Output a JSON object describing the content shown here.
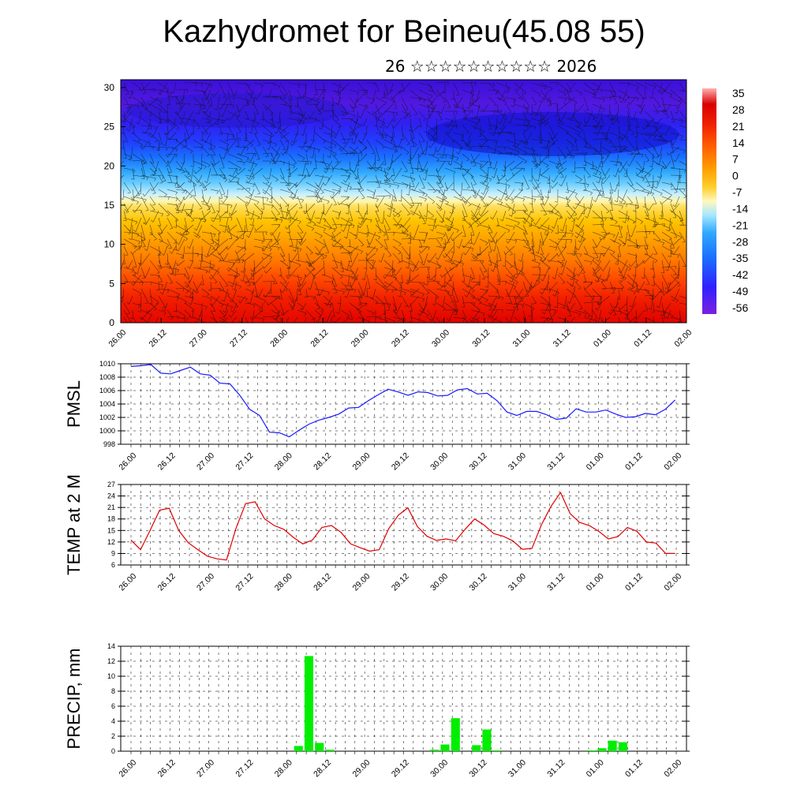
{
  "header": {
    "title": "Kazhydromet for Beineu(45.08 55)",
    "subtitle": "26 ☆☆☆☆☆☆☆☆☆☆ 2026"
  },
  "colors": {
    "pmsl_line": "#1a1aff",
    "temp_line": "#e00000",
    "precip_bar": "#00ee00",
    "frame": "#000000"
  },
  "chart_data": [
    {
      "type": "heatmap",
      "name": "cross-section",
      "y_ticks": [
        "0",
        "5",
        "10",
        "15",
        "20",
        "25",
        "30"
      ],
      "ylim": [
        0,
        31
      ],
      "x_ticks": [
        "26.00",
        "26.12",
        "27.00",
        "27.12",
        "28.00",
        "28.12",
        "29.00",
        "29.12",
        "30.00",
        "30.12",
        "31.00",
        "31.12",
        "01.00",
        "01.12",
        "02.00"
      ],
      "colorbar_labels": [
        "35",
        "28",
        "21",
        "14",
        "7",
        "0",
        "-7",
        "-14",
        "-21",
        "-28",
        "-35",
        "-42",
        "-49",
        "-56"
      ],
      "overlay": "wind barbs"
    },
    {
      "type": "line",
      "ylabel": "PMSL",
      "ylim": [
        998,
        1010
      ],
      "y_ticks": [
        "998",
        "1000",
        "1002",
        "1004",
        "1006",
        "1008",
        "1010"
      ],
      "x_ticks": [
        "26.00",
        "26.12",
        "27.00",
        "27.12",
        "28.00",
        "28.12",
        "29.00",
        "29.12",
        "30.00",
        "30.12",
        "31.00",
        "31.12",
        "01.00",
        "01.12",
        "02.00"
      ],
      "values": [
        1009.6,
        1009.7,
        1009.9,
        1008.6,
        1008.5,
        1009.0,
        1009.5,
        1008.5,
        1008.3,
        1007.1,
        1007.0,
        1005.3,
        1003.2,
        1002.3,
        999.8,
        999.7,
        999.1,
        1000.1,
        1001.0,
        1001.6,
        1002.0,
        1002.5,
        1003.4,
        1003.5,
        1004.5,
        1005.4,
        1006.2,
        1005.8,
        1005.3,
        1005.8,
        1005.7,
        1005.2,
        1005.3,
        1006.1,
        1006.3,
        1005.5,
        1005.6,
        1004.5,
        1002.8,
        1002.3,
        1002.9,
        1002.9,
        1002.4,
        1001.7,
        1001.9,
        1003.3,
        1002.8,
        1002.8,
        1003.1,
        1002.5,
        1002.0,
        1002.1,
        1002.6,
        1002.4,
        1003.2,
        1004.6
      ]
    },
    {
      "type": "line",
      "ylabel": "TEMP at 2 M",
      "ylim": [
        6,
        27
      ],
      "y_ticks": [
        "6",
        "9",
        "12",
        "15",
        "18",
        "21",
        "24",
        "27"
      ],
      "x_ticks": [
        "26.00",
        "26.12",
        "27.00",
        "27.12",
        "28.00",
        "28.12",
        "29.00",
        "29.12",
        "30.00",
        "30.12",
        "31.00",
        "31.12",
        "01.00",
        "01.12",
        "02.00"
      ],
      "values": [
        12.5,
        10.0,
        15.0,
        20.3,
        20.8,
        15.0,
        11.8,
        10.0,
        8.3,
        7.6,
        7.3,
        15.6,
        22.0,
        22.5,
        18.0,
        16.3,
        15.3,
        13.2,
        11.5,
        12.5,
        15.8,
        16.3,
        14.5,
        11.5,
        10.5,
        9.6,
        10.0,
        15.5,
        19.0,
        20.9,
        16.0,
        13.5,
        12.4,
        12.8,
        12.3,
        15.3,
        18.0,
        16.4,
        14.2,
        13.5,
        12.3,
        10.1,
        10.3,
        16.5,
        21.3,
        24.9,
        19.4,
        17.1,
        16.3,
        14.8,
        12.8,
        13.4,
        15.8,
        14.8,
        12.0,
        11.7,
        9.0,
        9.0
      ]
    },
    {
      "type": "bar",
      "ylabel": "PRECIP, mm",
      "ylim": [
        0,
        14
      ],
      "y_ticks": [
        "0",
        "2",
        "4",
        "6",
        "8",
        "10",
        "12",
        "14"
      ],
      "x_ticks": [
        "26.00",
        "26.12",
        "27.00",
        "27.12",
        "28.00",
        "28.12",
        "29.00",
        "29.12",
        "30.00",
        "30.12",
        "31.00",
        "31.12",
        "01.00",
        "01.12",
        "02.00"
      ],
      "bars": [
        {
          "t": 16,
          "v": 0.7
        },
        {
          "t": 17,
          "v": 12.7
        },
        {
          "t": 18,
          "v": 1.1
        },
        {
          "t": 19,
          "v": 0.2
        },
        {
          "t": 29,
          "v": 0.2
        },
        {
          "t": 30,
          "v": 0.9
        },
        {
          "t": 31,
          "v": 4.4
        },
        {
          "t": 33,
          "v": 0.8
        },
        {
          "t": 34,
          "v": 2.9
        },
        {
          "t": 35,
          "v": 0.1
        },
        {
          "t": 44,
          "v": 0.1
        },
        {
          "t": 45,
          "v": 0.4
        },
        {
          "t": 46,
          "v": 1.4
        },
        {
          "t": 47,
          "v": 1.2
        }
      ]
    }
  ]
}
